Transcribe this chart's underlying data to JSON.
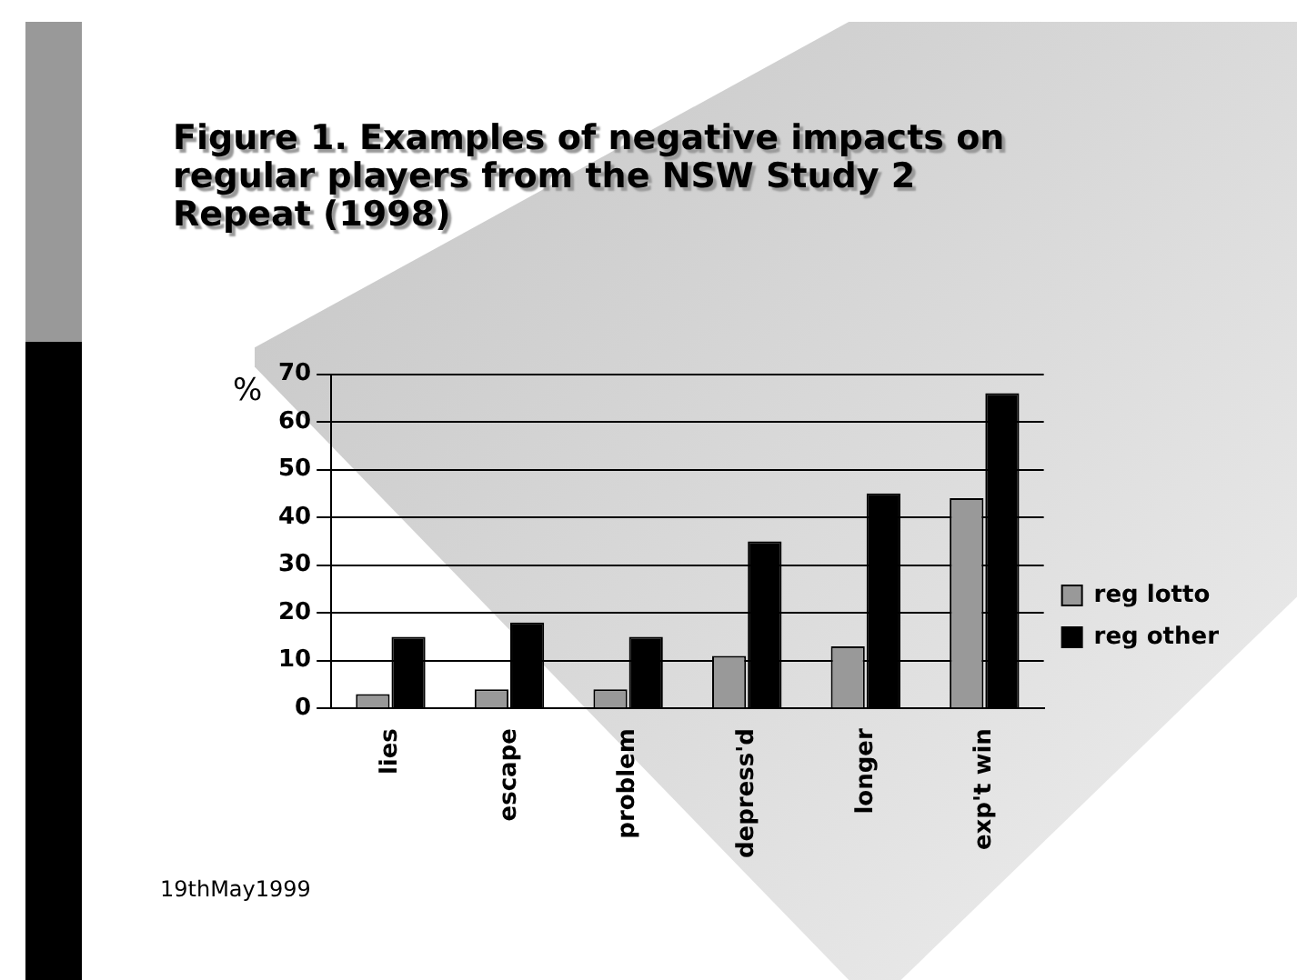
{
  "chart_data": {
    "type": "bar",
    "title": "Figure 1. Examples of negative impacts on regular players from the NSW Study 2 Repeat (1998)",
    "ylabel": "%",
    "categories": [
      "lies",
      "escape",
      "problem",
      "depress'd",
      "longer",
      "exp't win"
    ],
    "series": [
      {
        "name": "reg lotto",
        "color": "#999999",
        "values": [
          3,
          4,
          4,
          11,
          13,
          44
        ]
      },
      {
        "name": "reg other",
        "color": "#000000",
        "values": [
          15,
          18,
          15,
          35,
          45,
          66
        ]
      }
    ],
    "ylim": [
      0,
      70
    ],
    "yticks": [
      0,
      10,
      20,
      30,
      40,
      50,
      60,
      70
    ],
    "grid": "y",
    "legend": "right",
    "annotations": [
      "19thMay1999"
    ]
  }
}
